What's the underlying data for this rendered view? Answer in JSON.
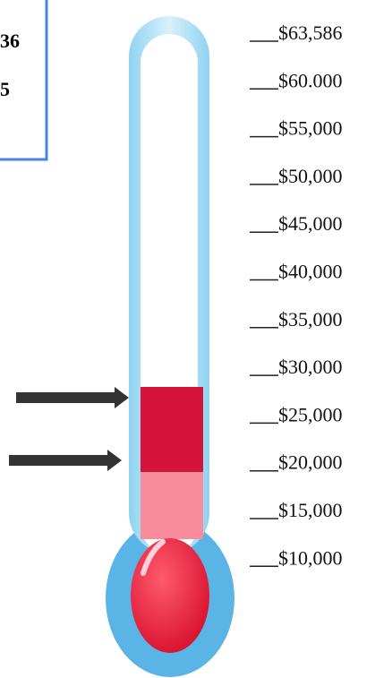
{
  "goal_box": {
    "lines": [
      "36",
      "5"
    ]
  },
  "scale_labels": [
    "$63,586",
    "$60.000",
    "$55,000",
    "$50,000",
    "$45,000",
    "$40,000",
    "$35,000",
    "$30,000",
    "$25,000",
    "$20,000",
    "$15,000",
    "$10,000"
  ]
}
